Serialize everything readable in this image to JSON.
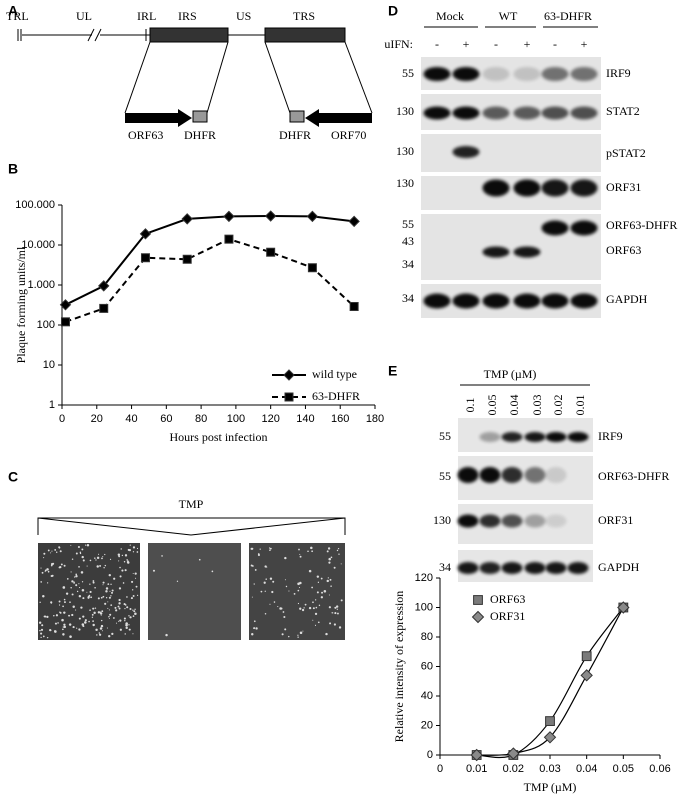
{
  "panel_labels": [
    "A",
    "B",
    "C",
    "D",
    "E"
  ],
  "diagram": {
    "regions": [
      "TRL",
      "UL",
      "IRL",
      "IRS",
      "US",
      "TRS"
    ],
    "genes": [
      "ORF63",
      "DHFR",
      "DHFR",
      "ORF70"
    ]
  },
  "chart_data": [
    {
      "type": "line",
      "y_label": "Plaque forming units/ml",
      "x_label": "Hours post infection",
      "log_scale": true,
      "xlim": [
        0,
        180
      ],
      "xticks": [
        0,
        20,
        40,
        60,
        80,
        100,
        120,
        140,
        160,
        180
      ],
      "ylim": [
        1,
        100000
      ],
      "yticks": [
        1,
        10,
        100,
        {
          "value": 1000,
          "label": "1.000"
        },
        {
          "value": 10000,
          "label": "10.000"
        },
        {
          "value": 100000,
          "label": "100.000"
        }
      ],
      "legend_position": "lower right",
      "series": [
        {
          "name": "wild type",
          "color": "#000000",
          "marker": "diamond",
          "line_style": "solid",
          "x": [
            2,
            24,
            48,
            72,
            96,
            120,
            144,
            168
          ],
          "values": [
            320,
            950,
            19000,
            45000,
            52000,
            53000,
            52000,
            39000
          ]
        },
        {
          "name": "63-DHFR",
          "color": "#000000",
          "marker": "square",
          "line_style": "dashed",
          "x": [
            2,
            24,
            48,
            72,
            96,
            120,
            144,
            168
          ],
          "values": [
            120,
            260,
            4800,
            4400,
            14000,
            6600,
            2700,
            290
          ]
        }
      ]
    },
    {
      "type": "scatter",
      "y_label": "Relative intensity of expression",
      "x_label": "TMP (µM)",
      "trendline": true,
      "xlim": [
        0,
        0.06
      ],
      "xticks": [
        0,
        0.01,
        0.02,
        0.03,
        0.04,
        0.05,
        0.06
      ],
      "ylim": [
        0,
        120
      ],
      "yticks": [
        0,
        20,
        40,
        60,
        80,
        100,
        120
      ],
      "legend_position": "upper left",
      "series": [
        {
          "name": "ORF63",
          "color": "#7a7a7a",
          "marker": "square",
          "x": [
            0.01,
            0.02,
            0.03,
            0.04,
            0.05
          ],
          "values": [
            0,
            0,
            23,
            67,
            100
          ]
        },
        {
          "name": "ORF31",
          "color": "#8a8a8a",
          "marker": "diamond",
          "x": [
            0.01,
            0.02,
            0.03,
            0.04,
            0.05
          ],
          "values": [
            0,
            1,
            12,
            54,
            100
          ]
        }
      ]
    }
  ],
  "panel_c": {
    "label": "TMP"
  },
  "blot_d": {
    "groups": [
      "Mock",
      "WT",
      "63-DHFR"
    ],
    "treatment_label": "uIFN:",
    "treatment": [
      "-",
      "+",
      "-",
      "+",
      "-",
      "+"
    ],
    "rows": [
      {
        "names": [
          "IRF9"
        ],
        "markers": [
          "55"
        ]
      },
      {
        "names": [
          "STAT2"
        ],
        "markers": [
          "130"
        ]
      },
      {
        "names": [
          "pSTAT2"
        ],
        "markers": [
          "130"
        ]
      },
      {
        "names": [
          "ORF31"
        ],
        "markers": [
          "130"
        ]
      },
      {
        "names": [
          "ORF63-DHFR",
          "ORF63"
        ],
        "markers": [
          "55",
          "43",
          "34"
        ]
      },
      {
        "names": [
          "GAPDH"
        ],
        "markers": [
          "34"
        ]
      }
    ]
  },
  "blot_e": {
    "header": "TMP (µM)",
    "lanes": [
      "0.1",
      "0.05",
      "0.04",
      "0.03",
      "0.02",
      "0.01"
    ],
    "rows": [
      {
        "names": [
          "IRF9"
        ],
        "markers": [
          "55"
        ]
      },
      {
        "names": [
          "ORF63-DHFR"
        ],
        "markers": [
          "55"
        ]
      },
      {
        "names": [
          "ORF31"
        ],
        "markers": [
          "130"
        ]
      },
      {
        "names": [
          "GAPDH"
        ],
        "markers": [
          "34"
        ]
      }
    ]
  }
}
